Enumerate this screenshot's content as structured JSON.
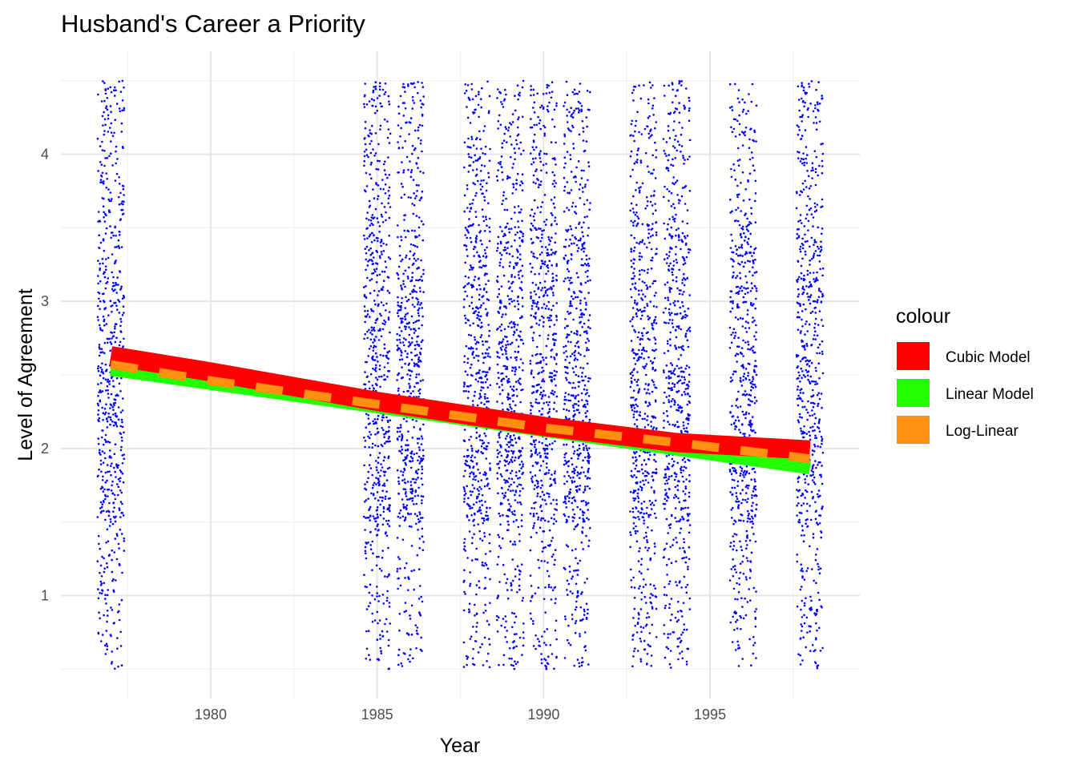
{
  "chart_data": {
    "type": "scatter",
    "title": "Husband's Career a Priority",
    "xlabel": "Year",
    "ylabel": "Level of Agreement",
    "xlim": [
      1975.5,
      1999.5
    ],
    "ylim": [
      0.3,
      4.7
    ],
    "x_ticks": [
      1980,
      1985,
      1990,
      1995
    ],
    "y_ticks": [
      1,
      2,
      3,
      4
    ],
    "grid": true,
    "legend": {
      "title": "colour",
      "position": "right",
      "entries": [
        {
          "label": "Cubic Model",
          "color": "#ff0000"
        },
        {
          "label": "Linear Model",
          "color": "#22ff00"
        },
        {
          "label": "Log-Linear",
          "color": "#ff9010"
        }
      ]
    },
    "points": {
      "color": "#0000ff",
      "survey_years": [
        1977,
        1985,
        1986,
        1988,
        1989,
        1990,
        1991,
        1993,
        1994,
        1996,
        1998
      ],
      "jitter_x": 0.4,
      "jitter_y": 0.5,
      "levels": [
        1,
        2,
        3,
        4
      ]
    },
    "series": [
      {
        "name": "Linear Model",
        "color": "#22ff00",
        "x": [
          1977,
          1998
        ],
        "y": [
          2.54,
          1.87
        ]
      },
      {
        "name": "Cubic Model",
        "color": "#ff0000",
        "x": [
          1977,
          1980,
          1985,
          1990,
          1994,
          1998
        ],
        "y": [
          2.63,
          2.52,
          2.32,
          2.15,
          2.04,
          1.99
        ]
      },
      {
        "name": "Log-Linear",
        "color": "#ff9010",
        "x": [
          1977,
          1980,
          1985,
          1990,
          1994,
          1998
        ],
        "y": [
          2.57,
          2.46,
          2.3,
          2.14,
          2.04,
          1.93
        ]
      }
    ]
  }
}
